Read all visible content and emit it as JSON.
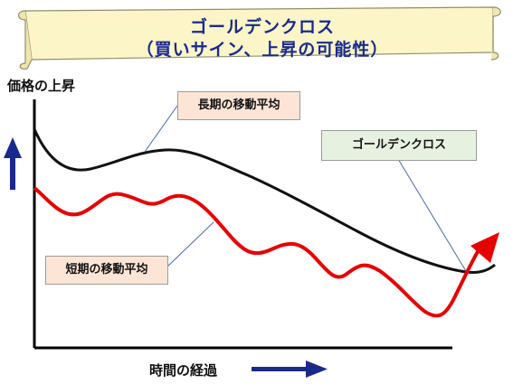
{
  "title": {
    "line1": "ゴールデンクロス",
    "line2": "（買いサイン、上昇の可能性）"
  },
  "axes": {
    "y_label": "価格の上昇",
    "x_label": "時間の経過"
  },
  "callouts": {
    "long_ma": "長期の移動平均",
    "short_ma": "短期の移動平均",
    "golden_cross": "ゴールデンクロス"
  },
  "colors": {
    "banner_fill": "#fbf5c8",
    "arrow_navy": "#1a2a8c",
    "long_line": "#111111",
    "short_line": "#e50000",
    "callout_peach": "#fde5d6",
    "callout_green": "#e7f1e0"
  },
  "icons": {
    "banner": "scroll-banner",
    "y_arrow": "arrow-up-icon",
    "x_arrow": "arrow-right-icon",
    "trend_arrow": "arrow-up-right-icon"
  }
}
